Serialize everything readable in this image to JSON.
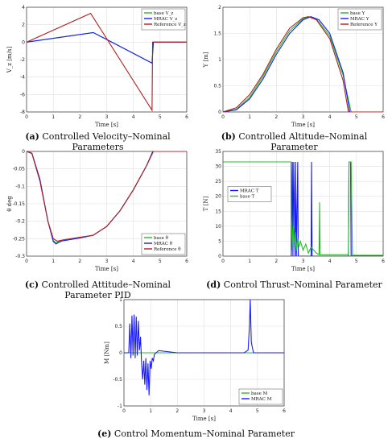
{
  "figures": [
    {
      "id": "a",
      "caption_prefix": "(a)",
      "caption_text": " Controlled Velocity–Nominal Parameters"
    },
    {
      "id": "b",
      "caption_prefix": "(b)",
      "caption_text": " Controlled Altitude–Nominal Parameter"
    },
    {
      "id": "c",
      "caption_prefix": "(c)",
      "caption_text": " Controlled Attitude–Nominal Parameter PID"
    },
    {
      "id": "d",
      "caption_prefix": "(d)",
      "caption_text": " Control Thrust–Nominal Parameter"
    },
    {
      "id": "e",
      "caption_prefix": "(e)",
      "caption_text": " Control Momentum–Nominal Parameter"
    }
  ],
  "colors": {
    "green": "#22c022",
    "blue": "#1a1aff",
    "red": "#b02020",
    "grid": "#e0e0e0",
    "axis": "#333333"
  },
  "chart_data": [
    {
      "id": "a",
      "type": "line",
      "xlabel": "Time [s]",
      "ylabel": "V_z [m/s]",
      "xlim": [
        0,
        6
      ],
      "ylim": [
        -8,
        4
      ],
      "xticks": [
        "0",
        "1",
        "2",
        "3",
        "4",
        "5",
        "6"
      ],
      "yticks": [
        "-8",
        "-6",
        "-4",
        "-2",
        "0",
        "2",
        "4"
      ],
      "grid": true,
      "legend": "top-right",
      "series": [
        {
          "name": "base V_z",
          "color": "green",
          "x": [
            0,
            2.5,
            4.7,
            4.75,
            6
          ],
          "y": [
            0,
            1.1,
            -2.4,
            0,
            0
          ]
        },
        {
          "name": "MRAC V_z",
          "color": "blue",
          "x": [
            0,
            2.5,
            4.7,
            4.75,
            6
          ],
          "y": [
            0,
            1.1,
            -2.4,
            0,
            0
          ]
        },
        {
          "name": "Reference V_z",
          "color": "red",
          "x": [
            0,
            2.4,
            4.7,
            4.72,
            6
          ],
          "y": [
            0,
            3.3,
            -7.8,
            0,
            0
          ]
        }
      ]
    },
    {
      "id": "b",
      "type": "line",
      "xlabel": "Time [s]",
      "ylabel": "Y [m]",
      "xlim": [
        0,
        6
      ],
      "ylim": [
        0,
        2
      ],
      "xticks": [
        "0",
        "1",
        "2",
        "3",
        "4",
        "5",
        "6"
      ],
      "yticks": [
        "0",
        "0.5",
        "1",
        "1.5",
        "2"
      ],
      "grid": true,
      "legend": "top-right",
      "series": [
        {
          "name": "base Y",
          "color": "green",
          "x": [
            0,
            0.5,
            1,
            1.5,
            2,
            2.5,
            3,
            3.25,
            3.5,
            4,
            4.5,
            4.8,
            6
          ],
          "y": [
            0,
            0.05,
            0.28,
            0.68,
            1.15,
            1.55,
            1.78,
            1.82,
            1.78,
            1.45,
            0.7,
            0,
            0
          ]
        },
        {
          "name": "MRAC Y",
          "color": "blue",
          "x": [
            0,
            0.5,
            1,
            1.5,
            2,
            2.5,
            3,
            3.3,
            3.6,
            4,
            4.5,
            4.75,
            6
          ],
          "y": [
            0,
            0.04,
            0.25,
            0.63,
            1.1,
            1.5,
            1.76,
            1.82,
            1.76,
            1.5,
            0.75,
            0,
            0
          ]
        },
        {
          "name": "Reference Y",
          "color": "red",
          "x": [
            0,
            0.5,
            1,
            1.5,
            2,
            2.5,
            3,
            3.2,
            3.5,
            4,
            4.5,
            4.7,
            6
          ],
          "y": [
            0,
            0.08,
            0.33,
            0.72,
            1.2,
            1.6,
            1.8,
            1.82,
            1.76,
            1.4,
            0.6,
            0,
            0
          ]
        }
      ]
    },
    {
      "id": "c",
      "type": "line",
      "xlabel": "Time [s]",
      "ylabel": "θ deg",
      "xlim": [
        0,
        6
      ],
      "ylim": [
        -0.3,
        0
      ],
      "xticks": [
        "0",
        "1",
        "2",
        "3",
        "4",
        "5",
        "6"
      ],
      "yticks": [
        "-0.3",
        "-0.25",
        "-0.2",
        "-0.15",
        "-0.1",
        "-0.05",
        "0"
      ],
      "grid": true,
      "legend": "bottom-right",
      "series": [
        {
          "name": "base θ",
          "color": "green",
          "x": [
            0,
            0.2,
            0.5,
            0.8,
            1,
            1.1,
            1.3,
            2,
            2.5,
            3,
            3.5,
            4,
            4.5,
            4.75,
            4.9,
            6
          ],
          "y": [
            0,
            -0.005,
            -0.08,
            -0.2,
            -0.255,
            -0.262,
            -0.255,
            -0.248,
            -0.24,
            -0.215,
            -0.17,
            -0.11,
            -0.04,
            0.003,
            0,
            0
          ]
        },
        {
          "name": "MRAC θ",
          "color": "blue",
          "x": [
            0,
            0.2,
            0.5,
            0.8,
            1,
            1.1,
            1.3,
            2,
            2.5,
            3,
            3.5,
            4,
            4.5,
            4.75,
            4.9,
            6
          ],
          "y": [
            0,
            -0.005,
            -0.08,
            -0.2,
            -0.258,
            -0.265,
            -0.257,
            -0.248,
            -0.24,
            -0.215,
            -0.17,
            -0.11,
            -0.04,
            0.004,
            0,
            0
          ]
        },
        {
          "name": "Reference θ",
          "color": "red",
          "x": [
            0,
            0.2,
            0.5,
            0.8,
            1,
            1.15,
            1.4,
            2,
            2.5,
            3,
            3.5,
            4,
            4.5,
            4.75,
            6
          ],
          "y": [
            0,
            -0.006,
            -0.085,
            -0.2,
            -0.25,
            -0.257,
            -0.253,
            -0.246,
            -0.24,
            -0.215,
            -0.17,
            -0.11,
            -0.04,
            0,
            0
          ]
        }
      ]
    },
    {
      "id": "d",
      "type": "line",
      "xlabel": "Time [s]",
      "ylabel": "T [N]",
      "xlim": [
        0,
        6
      ],
      "ylim": [
        0,
        35
      ],
      "xticks": [
        "0",
        "1",
        "2",
        "3",
        "4",
        "5",
        "6"
      ],
      "yticks": [
        "0",
        "5",
        "10",
        "15",
        "20",
        "25",
        "30",
        "35"
      ],
      "grid": true,
      "legend": "center-left",
      "series": [
        {
          "name": "MRAC T",
          "color": "blue",
          "x": [
            0,
            2.55,
            2.56,
            2.6,
            2.62,
            2.65,
            2.7,
            2.72,
            2.75,
            2.8,
            2.82,
            3.3,
            3.32,
            3.34,
            4.7,
            4.72,
            4.78,
            4.8,
            6
          ],
          "y": [
            31.5,
            31.5,
            0,
            31.5,
            0,
            31.5,
            0,
            31.5,
            0,
            31.5,
            0,
            0,
            31.5,
            0,
            0,
            31.5,
            31.5,
            0,
            0
          ]
        },
        {
          "name": "base T",
          "color": "green",
          "x": [
            0,
            2.55,
            2.56,
            2.6,
            2.64,
            2.68,
            2.72,
            2.76,
            2.8,
            2.84,
            2.9,
            3.0,
            3.1,
            3.2,
            3.3,
            3.5,
            3.6,
            3.62,
            3.64,
            3.8,
            4.7,
            4.72,
            4.75,
            4.8,
            4.85,
            6
          ],
          "y": [
            31.5,
            31.5,
            12,
            2,
            10,
            3,
            8,
            2,
            6,
            3,
            5,
            2,
            4,
            1,
            3,
            1,
            0.5,
            18,
            0.5,
            0.5,
            0.5,
            31.5,
            31.5,
            31.5,
            0.3,
            0.3
          ]
        }
      ]
    },
    {
      "id": "e",
      "type": "line",
      "xlabel": "Time [s]",
      "ylabel": "M [Nm]",
      "xlim": [
        0,
        6
      ],
      "ylim": [
        -1,
        1
      ],
      "xticks": [
        "0",
        "1",
        "2",
        "3",
        "4",
        "5",
        "6"
      ],
      "yticks": [
        "-1",
        "-0.5",
        "0",
        "0.5",
        "1"
      ],
      "grid": true,
      "legend": "bottom-right",
      "series": [
        {
          "name": "base M",
          "color": "green",
          "x": [
            0,
            6
          ],
          "y": [
            0,
            0
          ]
        },
        {
          "name": "MRAC M",
          "color": "blue",
          "x": [
            0,
            0.18,
            0.22,
            0.26,
            0.3,
            0.34,
            0.38,
            0.42,
            0.46,
            0.5,
            0.54,
            0.58,
            0.62,
            0.66,
            0.7,
            0.74,
            0.78,
            0.82,
            0.86,
            0.9,
            0.94,
            0.98,
            1.02,
            1.06,
            1.1,
            1.14,
            1.2,
            1.3,
            2.0,
            4.5,
            4.65,
            4.7,
            4.73,
            4.77,
            4.85,
            6
          ],
          "y": [
            0,
            0,
            0.55,
            -0.1,
            0.7,
            -0.05,
            0.72,
            -0.1,
            0.68,
            -0.05,
            0.6,
            0.05,
            0.3,
            -0.2,
            -0.5,
            -0.15,
            -0.6,
            -0.1,
            -0.7,
            -0.2,
            -0.8,
            -0.15,
            -0.3,
            -0.1,
            -0.15,
            -0.03,
            0,
            0.04,
            0,
            0,
            0.05,
            0.5,
            1.0,
            0.2,
            0,
            0
          ]
        }
      ]
    }
  ]
}
